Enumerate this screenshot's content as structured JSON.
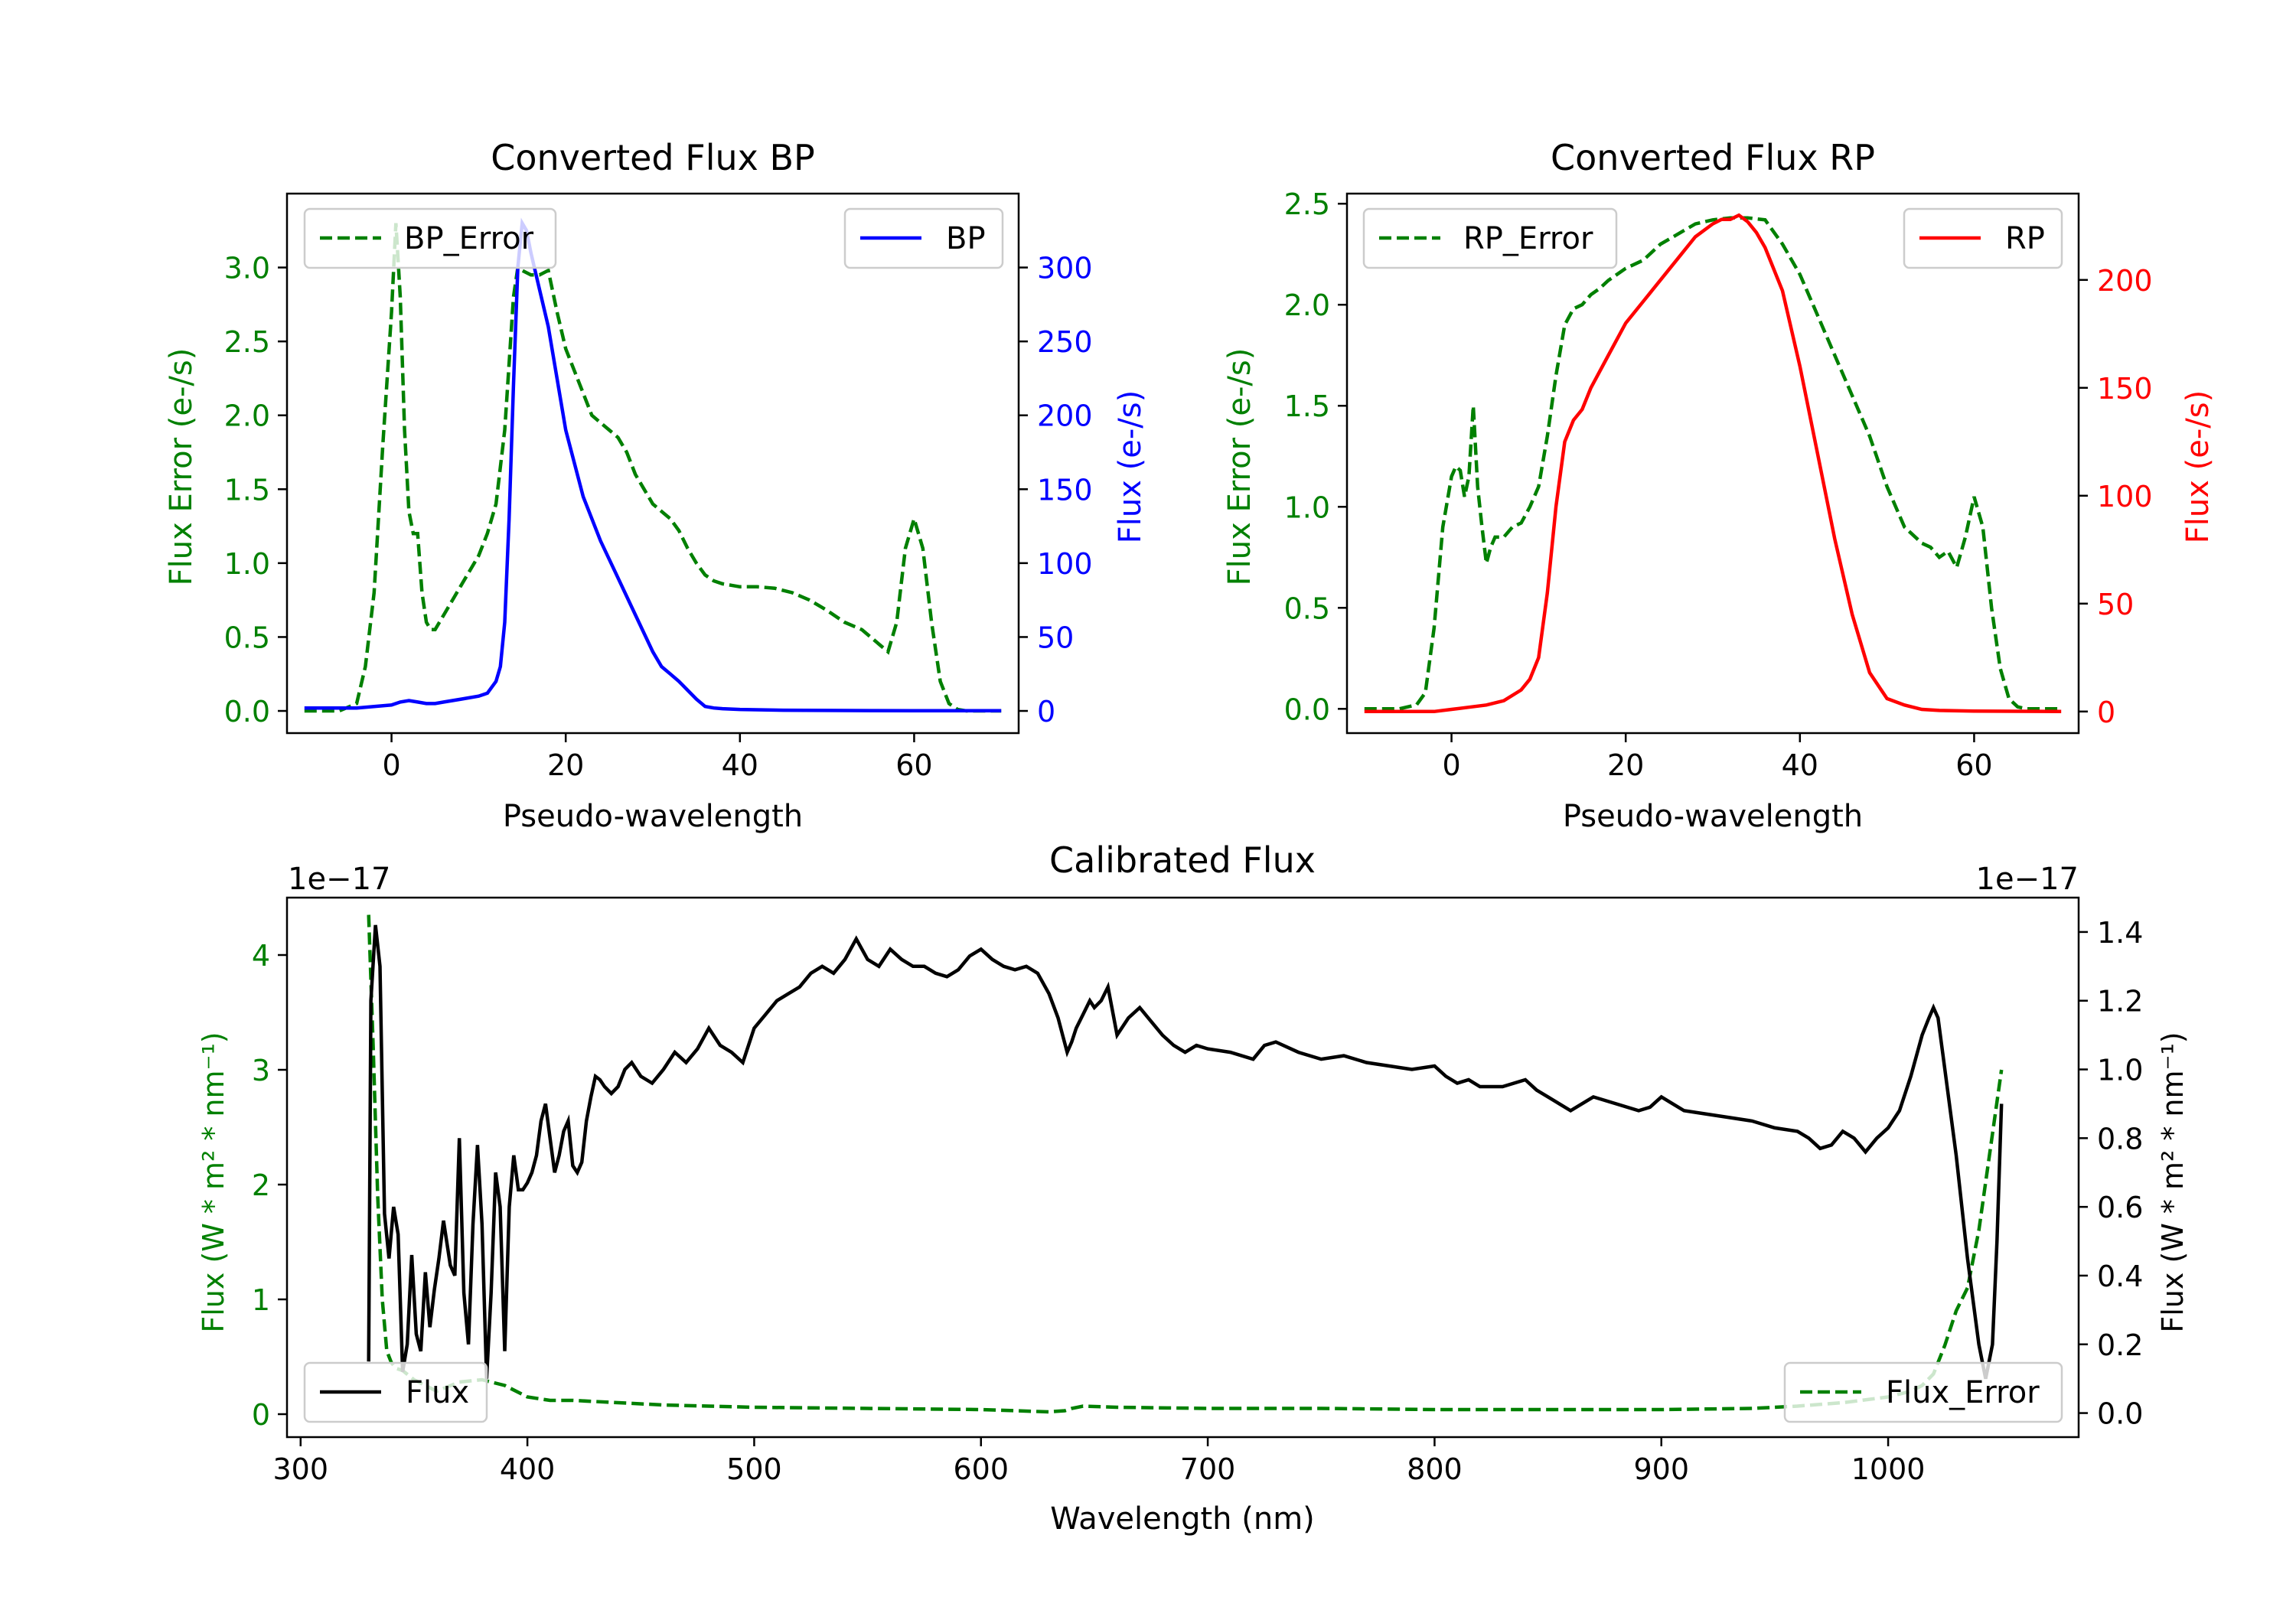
{
  "colors": {
    "green": "#008000",
    "blue": "#0000ff",
    "red": "#ff0000",
    "black": "#000000"
  },
  "chart_data": [
    {
      "type": "line",
      "title": "Converted Flux BP",
      "xlabel": "Pseudo-wavelength",
      "ylabel_left": "Flux Error (e-/s)",
      "ylabel_right": "Flux (e-/s)",
      "xlim": [
        -12,
        72
      ],
      "ylim_left": [
        -0.15,
        3.5
      ],
      "ylim_right": [
        -15,
        350
      ],
      "xticks": [
        "0",
        "20",
        "40",
        "60"
      ],
      "xtick_values": [
        0,
        20,
        40,
        60
      ],
      "yticks_left": [
        "0.0",
        "0.5",
        "1.0",
        "1.5",
        "2.0",
        "2.5",
        "3.0"
      ],
      "ytick_values_left": [
        0,
        0.5,
        1,
        1.5,
        2,
        2.5,
        3
      ],
      "yticks_right": [
        "0",
        "50",
        "100",
        "150",
        "200",
        "250",
        "300"
      ],
      "ytick_values_right": [
        0,
        50,
        100,
        150,
        200,
        250,
        300
      ],
      "legend_left": "BP_Error",
      "legend_right": "BP",
      "series_left": {
        "name": "BP_Error",
        "color": "#008000",
        "style": "dashed",
        "x": [
          -10,
          -6,
          -4,
          -3,
          -2,
          -1,
          0,
          0.5,
          1,
          1.5,
          2,
          2.5,
          3,
          3.5,
          4,
          4.5,
          5,
          5.5,
          6,
          7,
          8,
          9,
          10,
          11,
          12,
          13,
          14,
          14.5,
          15,
          16,
          17,
          18,
          19,
          20,
          21,
          22,
          23,
          24,
          25,
          26,
          27,
          28,
          29,
          30,
          31,
          32,
          33,
          34,
          35,
          36,
          37,
          38,
          39,
          40,
          42,
          44,
          46,
          48,
          50,
          52,
          54,
          56,
          57,
          58,
          59,
          60,
          61,
          62,
          63,
          64,
          65,
          66,
          68,
          70
        ],
        "y": [
          0.0,
          0.0,
          0.05,
          0.3,
          0.8,
          1.8,
          2.7,
          3.3,
          2.8,
          1.9,
          1.35,
          1.2,
          1.2,
          0.8,
          0.6,
          0.55,
          0.55,
          0.6,
          0.65,
          0.75,
          0.85,
          0.95,
          1.05,
          1.2,
          1.4,
          1.9,
          2.8,
          3.0,
          2.98,
          2.95,
          2.95,
          2.98,
          2.7,
          2.45,
          2.3,
          2.15,
          2.0,
          1.95,
          1.9,
          1.85,
          1.75,
          1.6,
          1.5,
          1.4,
          1.35,
          1.3,
          1.22,
          1.1,
          1.0,
          0.92,
          0.88,
          0.86,
          0.85,
          0.84,
          0.84,
          0.83,
          0.8,
          0.75,
          0.68,
          0.6,
          0.55,
          0.45,
          0.4,
          0.6,
          1.1,
          1.3,
          1.1,
          0.6,
          0.2,
          0.05,
          0.01,
          0.0,
          0.0,
          0.0
        ]
      },
      "series_right": {
        "name": "BP",
        "color": "#0000ff",
        "style": "solid",
        "x": [
          -10,
          -4,
          -2,
          0,
          1,
          2,
          3,
          4,
          5,
          6,
          8,
          10,
          11,
          12,
          12.5,
          13,
          13.5,
          14,
          14.5,
          15,
          15.5,
          16,
          17,
          18,
          19,
          20,
          22,
          24,
          26,
          28,
          30,
          31,
          32,
          33,
          34,
          35,
          36,
          37,
          38,
          40,
          45,
          50,
          55,
          60,
          65,
          70
        ],
        "y": [
          2,
          2,
          3,
          4,
          6,
          7,
          6,
          5,
          5,
          6,
          8,
          10,
          12,
          20,
          30,
          60,
          130,
          220,
          300,
          330,
          325,
          310,
          285,
          260,
          225,
          190,
          145,
          115,
          90,
          65,
          40,
          30,
          25,
          20,
          14,
          8,
          3,
          2,
          1.5,
          1,
          0.5,
          0.3,
          0.2,
          0.1,
          0.1,
          0.1
        ]
      }
    },
    {
      "type": "line",
      "title": "Converted Flux RP",
      "xlabel": "Pseudo-wavelength",
      "ylabel_left": "Flux Error (e-/s)",
      "ylabel_right": "Flux (e-/s)",
      "xlim": [
        -12,
        72
      ],
      "ylim_left": [
        -0.12,
        2.55
      ],
      "ylim_right": [
        -10,
        240
      ],
      "xticks": [
        "0",
        "20",
        "40",
        "60"
      ],
      "xtick_values": [
        0,
        20,
        40,
        60
      ],
      "yticks_left": [
        "0.0",
        "0.5",
        "1.0",
        "1.5",
        "2.0",
        "2.5"
      ],
      "ytick_values_left": [
        0,
        0.5,
        1,
        1.5,
        2,
        2.5
      ],
      "yticks_right": [
        "0",
        "50",
        "100",
        "150",
        "200"
      ],
      "ytick_values_right": [
        0,
        50,
        100,
        150,
        200
      ],
      "legend_left": "RP_Error",
      "legend_right": "RP",
      "series_left": {
        "name": "RP_Error",
        "color": "#008000",
        "style": "dashed",
        "x": [
          -10,
          -6,
          -4,
          -3,
          -2,
          -1,
          0,
          0.5,
          1,
          1.5,
          2,
          2.5,
          3,
          3.5,
          4,
          4.5,
          5,
          6,
          7,
          8,
          9,
          10,
          11,
          12,
          13,
          14,
          15,
          16,
          17,
          18,
          19,
          20,
          22,
          24,
          26,
          28,
          30,
          32,
          34,
          36,
          38,
          40,
          42,
          44,
          46,
          48,
          50,
          52,
          54,
          55,
          56,
          57,
          58,
          59,
          60,
          61,
          62,
          63,
          64,
          65,
          66,
          68,
          70
        ],
        "y": [
          0.0,
          0.0,
          0.02,
          0.08,
          0.4,
          0.9,
          1.15,
          1.2,
          1.18,
          1.05,
          1.15,
          1.5,
          1.1,
          0.9,
          0.72,
          0.8,
          0.85,
          0.85,
          0.9,
          0.92,
          1.0,
          1.1,
          1.35,
          1.65,
          1.9,
          1.98,
          2.0,
          2.05,
          2.08,
          2.12,
          2.15,
          2.18,
          2.22,
          2.3,
          2.35,
          2.4,
          2.42,
          2.43,
          2.43,
          2.42,
          2.3,
          2.15,
          1.95,
          1.75,
          1.55,
          1.35,
          1.1,
          0.9,
          0.82,
          0.8,
          0.75,
          0.78,
          0.7,
          0.85,
          1.05,
          0.9,
          0.5,
          0.2,
          0.05,
          0.01,
          0.0,
          0.0,
          0.0
        ]
      },
      "series_right": {
        "name": "RP",
        "color": "#ff0000",
        "style": "solid",
        "x": [
          -10,
          -4,
          -2,
          0,
          2,
          4,
          6,
          8,
          9,
          10,
          11,
          12,
          13,
          14,
          15,
          16,
          18,
          20,
          22,
          24,
          26,
          28,
          30,
          31,
          32,
          33,
          34,
          35,
          36,
          38,
          40,
          42,
          44,
          46,
          48,
          50,
          52,
          54,
          56,
          60,
          65,
          70
        ],
        "y": [
          0,
          0,
          0,
          1,
          2,
          3,
          5,
          10,
          15,
          25,
          55,
          95,
          125,
          135,
          140,
          150,
          165,
          180,
          190,
          200,
          210,
          220,
          226,
          228,
          228,
          230,
          227,
          222,
          215,
          195,
          160,
          120,
          80,
          45,
          18,
          6,
          3,
          1,
          0.5,
          0.2,
          0.1,
          0
        ],
        "peak_x": 33
      }
    },
    {
      "type": "line",
      "title": "Calibrated Flux",
      "xlabel": "Wavelength (nm)",
      "ylabel_left": "Flux (W * m² * nm⁻¹)",
      "ylabel_right": "Flux (W * m² * nm⁻¹)",
      "offset_left": "1e−17",
      "offset_right": "1e−17",
      "xlim": [
        294,
        1084
      ],
      "ylim_left": [
        -0.2,
        4.5
      ],
      "ylim_right": [
        -0.07,
        1.5
      ],
      "xticks": [
        "300",
        "400",
        "500",
        "600",
        "700",
        "800",
        "900",
        "1000"
      ],
      "xtick_values": [
        300,
        400,
        500,
        600,
        700,
        800,
        900,
        1000
      ],
      "yticks_left": [
        "0",
        "1",
        "2",
        "3",
        "4"
      ],
      "ytick_values_left": [
        0,
        1,
        2,
        3,
        4
      ],
      "yticks_right": [
        "0.0",
        "0.2",
        "0.4",
        "0.6",
        "0.8",
        "1.0",
        "1.2",
        "1.4"
      ],
      "ytick_values_right": [
        0,
        0.2,
        0.4,
        0.6,
        0.8,
        1.0,
        1.2,
        1.4
      ],
      "legend_left": "Flux",
      "legend_right": "Flux_Error",
      "series_right": {
        "name": "Flux",
        "color": "#000000",
        "style": "solid",
        "x": [
          330,
          331,
          333,
          335,
          337,
          339,
          341,
          343,
          345,
          347,
          349,
          351,
          353,
          355,
          357,
          359,
          361,
          363,
          366,
          368,
          370,
          372,
          374,
          376,
          378,
          380,
          382,
          384,
          386,
          388,
          390,
          392,
          394,
          396,
          398,
          400,
          402,
          404,
          406,
          408,
          410,
          412,
          414,
          416,
          418,
          420,
          422,
          424,
          426,
          428,
          430,
          432,
          434,
          437,
          440,
          443,
          446,
          450,
          455,
          460,
          465,
          470,
          475,
          480,
          485,
          490,
          495,
          500,
          505,
          510,
          515,
          520,
          525,
          530,
          535,
          540,
          545,
          550,
          555,
          560,
          565,
          570,
          575,
          580,
          585,
          590,
          595,
          600,
          605,
          610,
          615,
          620,
          625,
          630,
          634,
          636,
          638,
          640,
          642,
          645,
          648,
          650,
          653,
          656,
          660,
          665,
          670,
          675,
          680,
          685,
          690,
          695,
          700,
          710,
          720,
          725,
          730,
          740,
          750,
          760,
          770,
          780,
          790,
          800,
          805,
          810,
          815,
          820,
          830,
          840,
          845,
          850,
          855,
          860,
          865,
          870,
          880,
          890,
          895,
          900,
          905,
          910,
          920,
          930,
          940,
          950,
          960,
          965,
          970,
          975,
          980,
          985,
          990,
          995,
          1000,
          1005,
          1010,
          1015,
          1018,
          1020,
          1022,
          1025,
          1030,
          1035,
          1040,
          1043,
          1046,
          1048,
          1050
        ],
        "y": [
          0.15,
          1.2,
          1.42,
          1.3,
          0.58,
          0.45,
          0.6,
          0.52,
          0.12,
          0.2,
          0.46,
          0.23,
          0.18,
          0.41,
          0.25,
          0.36,
          0.45,
          0.56,
          0.43,
          0.4,
          0.8,
          0.35,
          0.2,
          0.55,
          0.78,
          0.55,
          0.1,
          0.35,
          0.7,
          0.6,
          0.18,
          0.6,
          0.75,
          0.65,
          0.65,
          0.67,
          0.7,
          0.75,
          0.85,
          0.9,
          0.8,
          0.7,
          0.75,
          0.82,
          0.85,
          0.72,
          0.7,
          0.73,
          0.85,
          0.92,
          0.98,
          0.97,
          0.95,
          0.93,
          0.95,
          1.0,
          1.02,
          0.98,
          0.96,
          1.0,
          1.05,
          1.02,
          1.06,
          1.12,
          1.07,
          1.05,
          1.02,
          1.12,
          1.16,
          1.2,
          1.22,
          1.24,
          1.28,
          1.3,
          1.28,
          1.32,
          1.38,
          1.32,
          1.3,
          1.35,
          1.32,
          1.3,
          1.3,
          1.28,
          1.27,
          1.29,
          1.33,
          1.35,
          1.32,
          1.3,
          1.29,
          1.3,
          1.28,
          1.22,
          1.15,
          1.1,
          1.05,
          1.08,
          1.12,
          1.16,
          1.2,
          1.18,
          1.2,
          1.24,
          1.1,
          1.15,
          1.18,
          1.14,
          1.1,
          1.07,
          1.05,
          1.07,
          1.06,
          1.05,
          1.03,
          1.07,
          1.08,
          1.05,
          1.03,
          1.04,
          1.02,
          1.01,
          1.0,
          1.01,
          0.98,
          0.96,
          0.97,
          0.95,
          0.95,
          0.97,
          0.94,
          0.92,
          0.9,
          0.88,
          0.9,
          0.92,
          0.9,
          0.88,
          0.89,
          0.92,
          0.9,
          0.88,
          0.87,
          0.86,
          0.85,
          0.83,
          0.82,
          0.8,
          0.77,
          0.78,
          0.82,
          0.8,
          0.76,
          0.8,
          0.83,
          0.88,
          0.98,
          1.1,
          1.15,
          1.18,
          1.15,
          1.0,
          0.75,
          0.45,
          0.2,
          0.1,
          0.2,
          0.5,
          0.9
        ]
      },
      "series_left": {
        "name": "Flux_Error",
        "color": "#008000",
        "style": "dashed",
        "x": [
          330,
          332,
          334,
          336,
          338,
          340,
          342,
          345,
          350,
          355,
          360,
          370,
          380,
          390,
          400,
          410,
          420,
          440,
          460,
          480,
          500,
          550,
          600,
          630,
          637,
          640,
          645,
          660,
          700,
          750,
          800,
          850,
          900,
          940,
          960,
          980,
          1000,
          1010,
          1015,
          1020,
          1025,
          1030,
          1035,
          1040,
          1045,
          1050
        ],
        "y": [
          4.35,
          3.2,
          1.9,
          1.0,
          0.55,
          0.45,
          0.4,
          0.38,
          0.3,
          0.25,
          0.2,
          0.28,
          0.3,
          0.25,
          0.15,
          0.12,
          0.12,
          0.1,
          0.08,
          0.07,
          0.06,
          0.05,
          0.04,
          0.02,
          0.03,
          0.05,
          0.07,
          0.06,
          0.05,
          0.05,
          0.04,
          0.04,
          0.04,
          0.05,
          0.07,
          0.1,
          0.15,
          0.2,
          0.25,
          0.35,
          0.6,
          0.9,
          1.1,
          1.6,
          2.3,
          3.0
        ]
      }
    }
  ]
}
